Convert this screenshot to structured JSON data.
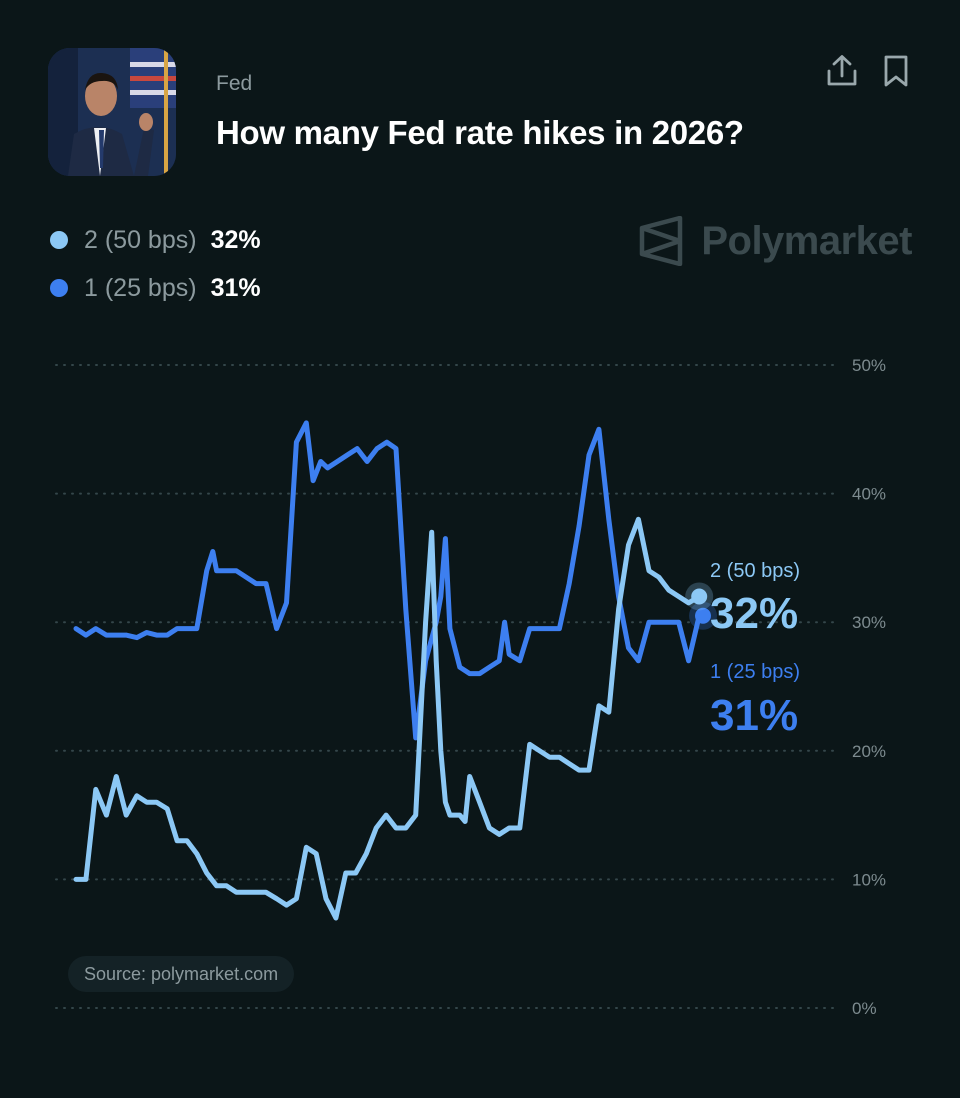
{
  "header": {
    "category": "Fed",
    "title": "How many Fed rate hikes in 2026?",
    "avatar_icon": "speaker-portrait",
    "share_icon": "share-icon",
    "bookmark_icon": "bookmark-icon"
  },
  "legend": [
    {
      "name": "2 (50 bps)",
      "value": "32%",
      "color": "#8cc8f5"
    },
    {
      "name": "1 (25 bps)",
      "value": "31%",
      "color": "#3d7ff0"
    }
  ],
  "brand": {
    "name": "Polymarket",
    "icon": "polymarket-logo-icon"
  },
  "source": "Source: polymarket.com",
  "chart_data": {
    "type": "line",
    "ylim": [
      0,
      50
    ],
    "yticks": [
      "50%",
      "40%",
      "30%",
      "20%",
      "10%",
      "0%"
    ],
    "ytick_values": [
      50,
      40,
      30,
      20,
      10,
      0
    ],
    "grid": true,
    "xlim": [
      0,
      100
    ],
    "series": [
      {
        "name": "2 (50 bps)",
        "color": "#8cc8f5",
        "end_label": "2 (50 bps)",
        "end_value": "32%",
        "points": [
          [
            0,
            10
          ],
          [
            1.3,
            10
          ],
          [
            2.6,
            17
          ],
          [
            4,
            15
          ],
          [
            5.3,
            18
          ],
          [
            6.6,
            15
          ],
          [
            8,
            16.5
          ],
          [
            9.3,
            16
          ],
          [
            10.6,
            16
          ],
          [
            12,
            15.5
          ],
          [
            13.3,
            13
          ],
          [
            14.6,
            13
          ],
          [
            15.9,
            12
          ],
          [
            17.2,
            10.5
          ],
          [
            18.5,
            9.5
          ],
          [
            19.8,
            9.5
          ],
          [
            21.1,
            9
          ],
          [
            22.4,
            9
          ],
          [
            23.7,
            9
          ],
          [
            25,
            9
          ],
          [
            26.4,
            8.5
          ],
          [
            27.7,
            8
          ],
          [
            29,
            8.5
          ],
          [
            30.3,
            12.5
          ],
          [
            31.6,
            12
          ],
          [
            32.9,
            8.5
          ],
          [
            34.2,
            7
          ],
          [
            35.5,
            10.5
          ],
          [
            36.8,
            10.5
          ],
          [
            38.2,
            12
          ],
          [
            39.5,
            14
          ],
          [
            40.8,
            15
          ],
          [
            42.1,
            14
          ],
          [
            43.4,
            14
          ],
          [
            44.7,
            15
          ],
          [
            46,
            30
          ],
          [
            46.8,
            37
          ],
          [
            47.4,
            27
          ],
          [
            48,
            20
          ],
          [
            48.6,
            16
          ],
          [
            49.2,
            15
          ],
          [
            50.5,
            15
          ],
          [
            51.2,
            14.5
          ],
          [
            51.8,
            18
          ],
          [
            53.1,
            16
          ],
          [
            54.4,
            14
          ],
          [
            55.7,
            13.5
          ],
          [
            57,
            14
          ],
          [
            58.4,
            14
          ],
          [
            59.7,
            20.5
          ],
          [
            61,
            20
          ],
          [
            62.3,
            19.5
          ],
          [
            63.6,
            19.5
          ],
          [
            64.9,
            19
          ],
          [
            66.2,
            18.5
          ],
          [
            67.5,
            18.5
          ],
          [
            68.8,
            23.5
          ],
          [
            70.1,
            23
          ],
          [
            71.4,
            31
          ],
          [
            72.7,
            36
          ],
          [
            74,
            38
          ],
          [
            75.4,
            34
          ],
          [
            76.7,
            33.5
          ],
          [
            78,
            32.5
          ],
          [
            79.3,
            32
          ],
          [
            80.6,
            31.5
          ],
          [
            82,
            32
          ]
        ]
      },
      {
        "name": "1 (25 bps)",
        "color": "#3d7ff0",
        "end_label": "1 (25 bps)",
        "end_value": "31%",
        "points": [
          [
            0,
            29.5
          ],
          [
            1.3,
            29
          ],
          [
            2.6,
            29.5
          ],
          [
            4,
            29
          ],
          [
            5.3,
            29
          ],
          [
            6.6,
            29
          ],
          [
            8,
            28.8
          ],
          [
            9.3,
            29.2
          ],
          [
            10.6,
            29
          ],
          [
            12,
            29
          ],
          [
            13.3,
            29.5
          ],
          [
            14.6,
            29.5
          ],
          [
            15.9,
            29.5
          ],
          [
            17.2,
            34
          ],
          [
            18,
            35.5
          ],
          [
            18.5,
            34
          ],
          [
            19.8,
            34
          ],
          [
            21.1,
            34
          ],
          [
            22.4,
            33.5
          ],
          [
            23.7,
            33
          ],
          [
            25,
            33
          ],
          [
            26.4,
            29.5
          ],
          [
            27.7,
            31.5
          ],
          [
            29,
            44
          ],
          [
            30.3,
            45.5
          ],
          [
            31.2,
            41
          ],
          [
            32.2,
            42.5
          ],
          [
            33.1,
            42
          ],
          [
            34.4,
            42.5
          ],
          [
            35.7,
            43
          ],
          [
            37,
            43.5
          ],
          [
            38.3,
            42.5
          ],
          [
            39.6,
            43.5
          ],
          [
            40.9,
            44
          ],
          [
            42.1,
            43.5
          ],
          [
            43.4,
            31
          ],
          [
            44.7,
            21
          ],
          [
            46,
            27
          ],
          [
            47.4,
            30
          ],
          [
            48,
            32
          ],
          [
            48.6,
            36.5
          ],
          [
            49.2,
            29.5
          ],
          [
            50.5,
            26.5
          ],
          [
            51.8,
            26
          ],
          [
            53.1,
            26
          ],
          [
            54.4,
            26.5
          ],
          [
            55.7,
            27
          ],
          [
            56.4,
            30
          ],
          [
            57,
            27.5
          ],
          [
            58.4,
            27
          ],
          [
            59.7,
            29.5
          ],
          [
            61,
            29.5
          ],
          [
            62.3,
            29.5
          ],
          [
            63.6,
            29.5
          ],
          [
            64.9,
            33
          ],
          [
            66.2,
            37.5
          ],
          [
            67.5,
            43
          ],
          [
            68.8,
            45
          ],
          [
            70.1,
            38
          ],
          [
            71.4,
            32
          ],
          [
            72.7,
            28
          ],
          [
            74,
            27
          ],
          [
            75.4,
            30
          ],
          [
            76.7,
            30
          ],
          [
            78,
            30
          ],
          [
            79.3,
            30
          ],
          [
            80.6,
            27
          ],
          [
            82,
            30.5
          ],
          [
            82.5,
            30.5
          ]
        ]
      }
    ]
  }
}
